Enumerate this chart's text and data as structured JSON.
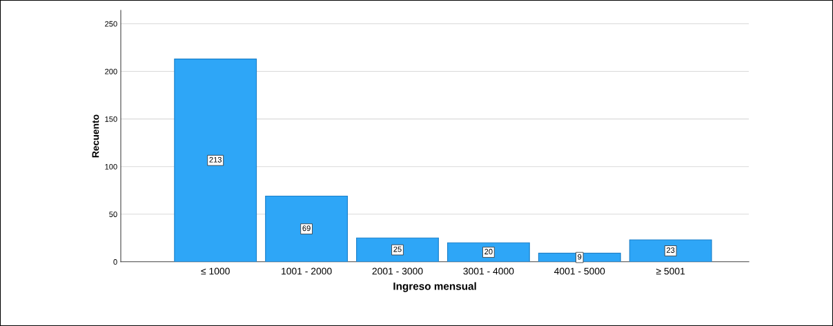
{
  "chart_data": {
    "type": "bar",
    "categories": [
      "≤ 1000",
      "1001 - 2000",
      "2001 - 3000",
      "3001 - 4000",
      "4001 - 5000",
      "≥ 5001"
    ],
    "values": [
      213,
      69,
      25,
      20,
      9,
      23
    ],
    "color": "#2ea6f7",
    "xlabel": "Ingreso mensual",
    "ylabel": "Recuento",
    "ylim": [
      0,
      264
    ],
    "yticks": [
      0,
      50,
      100,
      150,
      200,
      250
    ],
    "grid": "y",
    "data_labels": true
  }
}
